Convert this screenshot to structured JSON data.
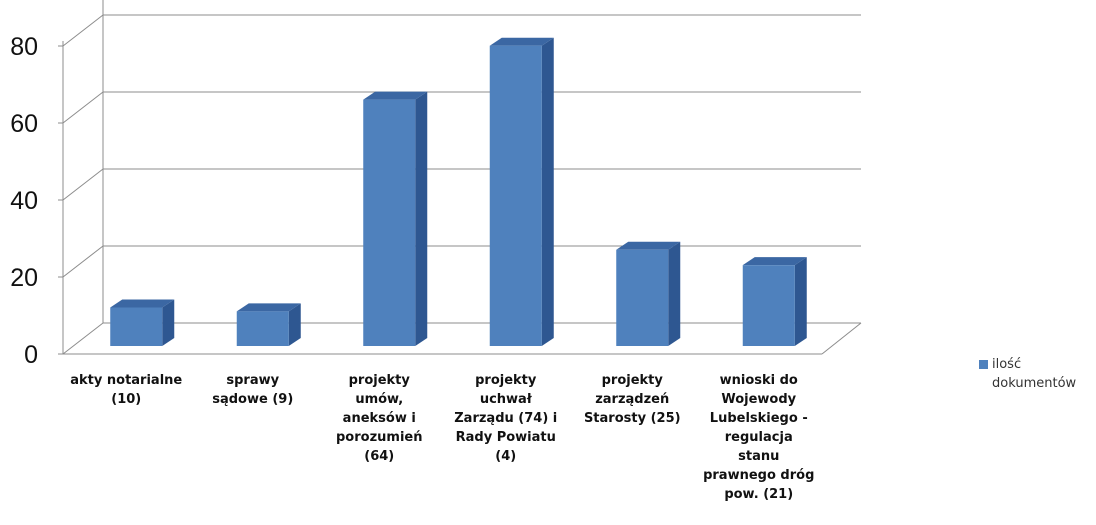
{
  "chart_data": {
    "type": "bar",
    "categories": [
      "akty notarialne (10)",
      "sprawy sądowe (9)",
      "projekty umów, aneksów i porozumień (64)",
      "projekty uchwał Zarządu (74) i Rady Powiatu (4)",
      "projekty zarządzeń Starosty (25)",
      "wnioski do Wojewody Lubelskiego - regulacja stanu prawnego dróg pow. (21)"
    ],
    "series": [
      {
        "name": "ilość dokumentów",
        "values": [
          10,
          9,
          64,
          78,
          25,
          21
        ]
      }
    ],
    "y_ticks": [
      "0",
      "20",
      "40",
      "60",
      "80"
    ],
    "ylim": [
      0,
      100
    ],
    "grid": true,
    "legend_position": "right",
    "bar_color": "#4f81bd",
    "bar_side_color": "#2e5791",
    "bar_top_color": "#3b67a3"
  }
}
